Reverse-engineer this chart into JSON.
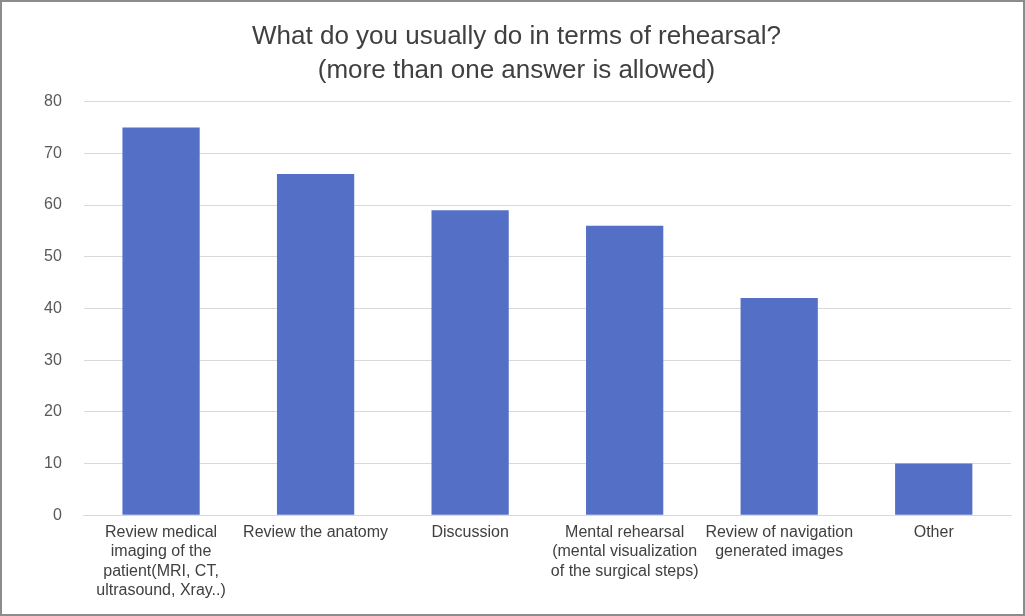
{
  "chart_data": {
    "type": "bar",
    "title": "What do you usually do in terms of rehearsal?",
    "subtitle": "(more than one answer is allowed)",
    "categories": [
      "Review medical imaging of the patient(MRI, CT, ultrasound, Xray..)",
      "Review the anatomy",
      "Discussion",
      "Mental rehearsal (mental visualization of the surgical steps)",
      "Review of navigation generated images",
      "Other"
    ],
    "values": [
      75,
      66,
      59,
      56,
      42,
      10
    ],
    "color": "#5470c6",
    "ylim": [
      0,
      80
    ],
    "yticks": [
      0,
      10,
      20,
      30,
      40,
      50,
      60,
      70,
      80
    ],
    "grid": "y",
    "legend": false
  }
}
